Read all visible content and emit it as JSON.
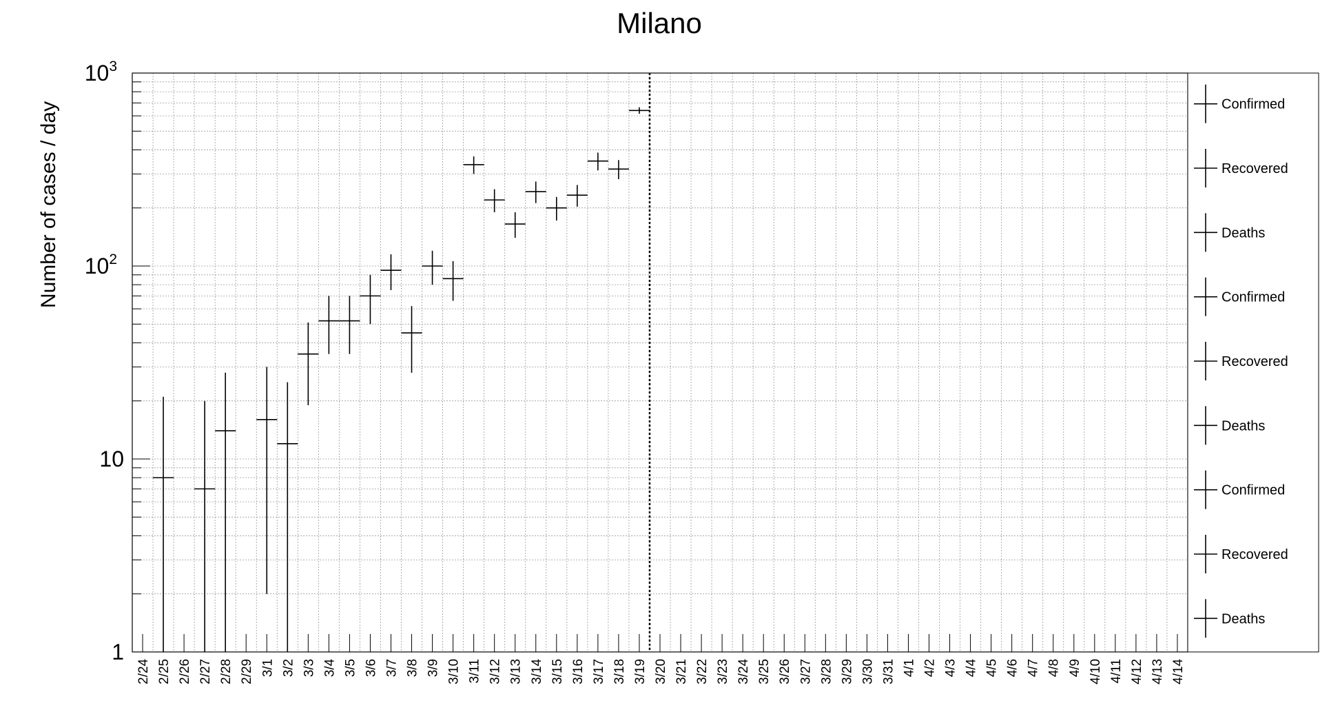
{
  "chart_data": {
    "type": "scatter",
    "title": "Milano",
    "ylabel": "Number of cases / day",
    "xlabel": "",
    "yscale": "log",
    "ylim": [
      1,
      1000
    ],
    "ytick_labels": [
      {
        "value": 1,
        "label": "1"
      },
      {
        "value": 10,
        "label": "10"
      },
      {
        "value": 100,
        "label": "10",
        "exp": "2"
      },
      {
        "value": 1000,
        "label": "10",
        "exp": "3"
      }
    ],
    "grid": true,
    "categories": [
      "2/24",
      "2/25",
      "2/26",
      "2/27",
      "2/28",
      "2/29",
      "3/1",
      "3/2",
      "3/3",
      "3/4",
      "3/5",
      "3/6",
      "3/7",
      "3/8",
      "3/9",
      "3/10",
      "3/11",
      "3/12",
      "3/13",
      "3/14",
      "3/15",
      "3/16",
      "3/17",
      "3/18",
      "3/19",
      "3/20",
      "3/21",
      "3/22",
      "3/23",
      "3/24",
      "3/25",
      "3/26",
      "3/27",
      "3/28",
      "3/29",
      "3/30",
      "3/31",
      "4/1",
      "4/2",
      "4/3",
      "4/4",
      "4/5",
      "4/6",
      "4/7",
      "4/8",
      "4/9",
      "4/10",
      "4/11",
      "4/12",
      "4/13",
      "4/14"
    ],
    "marker_line": {
      "category": "3/20",
      "style": "dotted"
    },
    "legend": {
      "placement": "right",
      "entries": [
        "Confirmed",
        "Recovered",
        "Deaths",
        "Confirmed",
        "Recovered",
        "Deaths",
        "Confirmed",
        "Recovered",
        "Deaths"
      ]
    },
    "series": [
      {
        "points": [
          {
            "x": "2/25",
            "y": 8,
            "ylow": 1,
            "yhigh": 21
          },
          {
            "x": "2/27",
            "y": 7,
            "ylow": 1,
            "yhigh": 20
          },
          {
            "x": "2/28",
            "y": 14,
            "ylow": 1,
            "yhigh": 28
          },
          {
            "x": "3/1",
            "y": 16,
            "ylow": 2,
            "yhigh": 30
          },
          {
            "x": "3/2",
            "y": 12,
            "ylow": 1,
            "yhigh": 25
          },
          {
            "x": "3/3",
            "y": 35,
            "ylow": 19,
            "yhigh": 51
          },
          {
            "x": "3/4",
            "y": 52,
            "ylow": 35,
            "yhigh": 70
          },
          {
            "x": "3/5",
            "y": 52,
            "ylow": 35,
            "yhigh": 70
          },
          {
            "x": "3/6",
            "y": 70,
            "ylow": 50,
            "yhigh": 90
          },
          {
            "x": "3/7",
            "y": 95,
            "ylow": 75,
            "yhigh": 115
          },
          {
            "x": "3/8",
            "y": 45,
            "ylow": 28,
            "yhigh": 62
          },
          {
            "x": "3/9",
            "y": 100,
            "ylow": 80,
            "yhigh": 120
          },
          {
            "x": "3/10",
            "y": 86,
            "ylow": 66,
            "yhigh": 106
          },
          {
            "x": "3/11",
            "y": 335,
            "ylow": 300,
            "yhigh": 370
          },
          {
            "x": "3/12",
            "y": 220,
            "ylow": 190,
            "yhigh": 250
          },
          {
            "x": "3/13",
            "y": 165,
            "ylow": 140,
            "yhigh": 190
          },
          {
            "x": "3/14",
            "y": 243,
            "ylow": 212,
            "yhigh": 274
          },
          {
            "x": "3/15",
            "y": 200,
            "ylow": 172,
            "yhigh": 228
          },
          {
            "x": "3/16",
            "y": 233,
            "ylow": 203,
            "yhigh": 263
          },
          {
            "x": "3/17",
            "y": 350,
            "ylow": 313,
            "yhigh": 387
          },
          {
            "x": "3/18",
            "y": 318,
            "ylow": 282,
            "yhigh": 354
          },
          {
            "x": "3/19",
            "y": 640,
            "ylow": 615,
            "yhigh": 665
          }
        ]
      }
    ]
  }
}
